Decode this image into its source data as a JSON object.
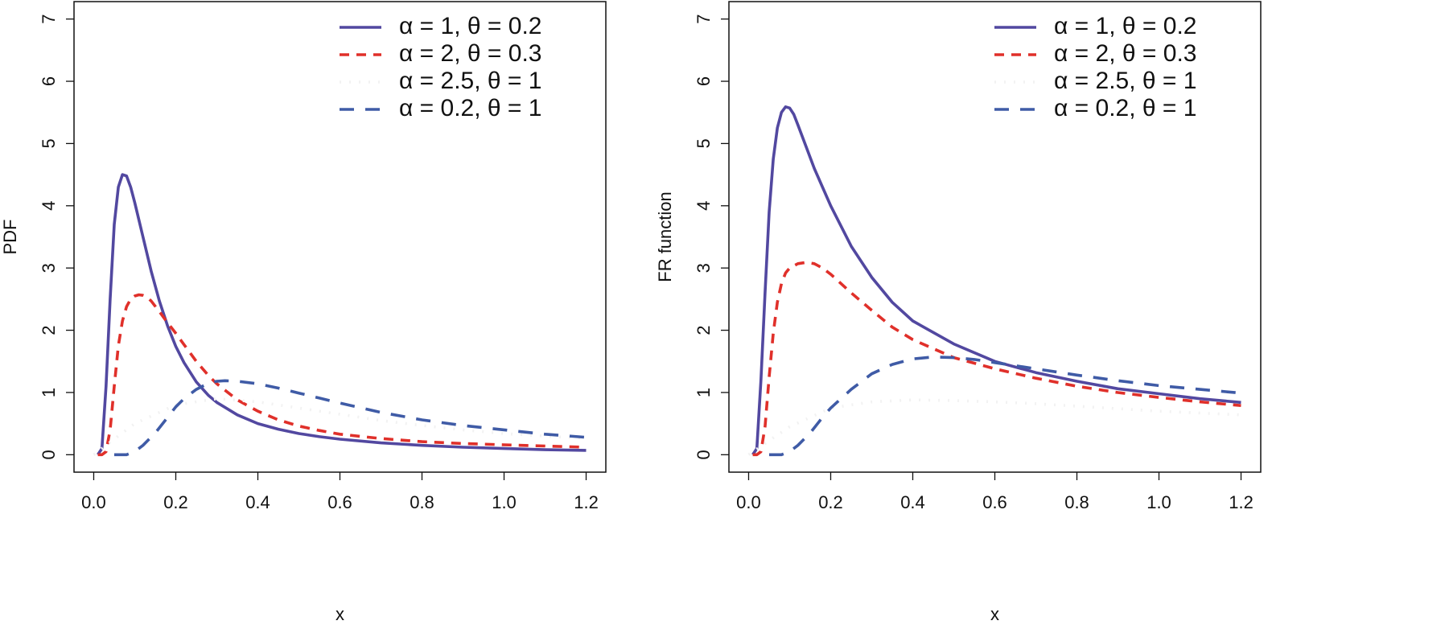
{
  "chart_data": [
    {
      "type": "line",
      "title": "",
      "xlabel": "x",
      "ylabel": "PDF",
      "xlim": [
        0.0,
        1.2
      ],
      "ylim": [
        0,
        7
      ],
      "xticks": [
        0.0,
        0.2,
        0.4,
        0.6,
        0.8,
        1.0,
        1.2
      ],
      "xtick_labels": [
        "0.0",
        "0.2",
        "0.4",
        "0.6",
        "0.8",
        "1.0",
        "1.2"
      ],
      "yticks": [
        0,
        1,
        2,
        3,
        4,
        5,
        6,
        7
      ],
      "ytick_labels": [
        "0",
        "1",
        "2",
        "3",
        "4",
        "5",
        "6",
        "7"
      ],
      "legend_position": "top-right",
      "grid": false,
      "series": [
        {
          "name": "α = 1, θ = 0.2",
          "color": "#5248A0",
          "style": "solid",
          "x": [
            0.01,
            0.02,
            0.03,
            0.04,
            0.05,
            0.06,
            0.07,
            0.08,
            0.09,
            0.1,
            0.12,
            0.14,
            0.16,
            0.18,
            0.2,
            0.22,
            0.25,
            0.28,
            0.3,
            0.35,
            0.4,
            0.45,
            0.5,
            0.55,
            0.6,
            0.7,
            0.8,
            0.9,
            1.0,
            1.1,
            1.2
          ],
          "values": [
            0.0,
            0.1,
            1.1,
            2.5,
            3.7,
            4.3,
            4.5,
            4.48,
            4.3,
            4.05,
            3.5,
            2.95,
            2.47,
            2.07,
            1.74,
            1.48,
            1.17,
            0.95,
            0.84,
            0.64,
            0.5,
            0.41,
            0.34,
            0.29,
            0.25,
            0.19,
            0.15,
            0.12,
            0.1,
            0.08,
            0.07
          ]
        },
        {
          "name": "α = 2, θ = 0.3",
          "color": "#E0302A",
          "style": "dashed",
          "x": [
            0.01,
            0.02,
            0.03,
            0.04,
            0.05,
            0.06,
            0.07,
            0.08,
            0.09,
            0.1,
            0.11,
            0.12,
            0.13,
            0.14,
            0.16,
            0.18,
            0.2,
            0.22,
            0.25,
            0.28,
            0.3,
            0.35,
            0.4,
            0.45,
            0.5,
            0.55,
            0.6,
            0.7,
            0.8,
            0.9,
            1.0,
            1.1,
            1.2
          ],
          "values": [
            0.0,
            0.0,
            0.05,
            0.4,
            1.1,
            1.75,
            2.15,
            2.38,
            2.5,
            2.55,
            2.57,
            2.56,
            2.53,
            2.47,
            2.3,
            2.12,
            1.95,
            1.77,
            1.5,
            1.27,
            1.14,
            0.88,
            0.7,
            0.56,
            0.46,
            0.39,
            0.33,
            0.26,
            0.21,
            0.18,
            0.16,
            0.14,
            0.12
          ]
        },
        {
          "name": "α = 2.5, θ = 1",
          "color": "#F2F2F2",
          "style": "dotted",
          "x": [
            0.0,
            0.1,
            0.2,
            0.3,
            0.4,
            0.5,
            0.6,
            0.7,
            0.8,
            0.9,
            1.0,
            1.1,
            1.2
          ],
          "values": [
            0.0,
            0.5,
            0.8,
            0.9,
            0.85,
            0.75,
            0.65,
            0.55,
            0.47,
            0.4,
            0.34,
            0.3,
            0.26
          ]
        },
        {
          "name": "α = 0.2, θ = 1",
          "color": "#3F5BA6",
          "style": "longdash",
          "x": [
            0.05,
            0.08,
            0.1,
            0.12,
            0.15,
            0.18,
            0.2,
            0.22,
            0.25,
            0.28,
            0.3,
            0.32,
            0.35,
            0.4,
            0.45,
            0.5,
            0.55,
            0.6,
            0.7,
            0.8,
            0.9,
            1.0,
            1.1,
            1.2
          ],
          "values": [
            0.0,
            0.0,
            0.05,
            0.15,
            0.35,
            0.6,
            0.77,
            0.9,
            1.05,
            1.15,
            1.18,
            1.19,
            1.18,
            1.14,
            1.07,
            0.99,
            0.91,
            0.83,
            0.68,
            0.56,
            0.47,
            0.4,
            0.33,
            0.28
          ]
        }
      ]
    },
    {
      "type": "line",
      "title": "",
      "xlabel": "x",
      "ylabel": "FR function",
      "xlim": [
        0.0,
        1.2
      ],
      "ylim": [
        0,
        7
      ],
      "xticks": [
        0.0,
        0.2,
        0.4,
        0.6,
        0.8,
        1.0,
        1.2
      ],
      "xtick_labels": [
        "0.0",
        "0.2",
        "0.4",
        "0.6",
        "0.8",
        "1.0",
        "1.2"
      ],
      "yticks": [
        0,
        1,
        2,
        3,
        4,
        5,
        6,
        7
      ],
      "ytick_labels": [
        "0",
        "1",
        "2",
        "3",
        "4",
        "5",
        "6",
        "7"
      ],
      "legend_position": "top-right",
      "grid": false,
      "series": [
        {
          "name": "α = 1, θ = 0.2",
          "color": "#5248A0",
          "style": "solid",
          "x": [
            0.01,
            0.02,
            0.03,
            0.04,
            0.05,
            0.06,
            0.07,
            0.08,
            0.09,
            0.1,
            0.11,
            0.12,
            0.14,
            0.16,
            0.18,
            0.2,
            0.25,
            0.3,
            0.35,
            0.4,
            0.5,
            0.6,
            0.7,
            0.8,
            0.9,
            1.0,
            1.1,
            1.2
          ],
          "values": [
            0.0,
            0.1,
            1.2,
            2.6,
            3.9,
            4.75,
            5.25,
            5.5,
            5.59,
            5.57,
            5.47,
            5.3,
            4.95,
            4.6,
            4.3,
            4.0,
            3.35,
            2.85,
            2.45,
            2.15,
            1.78,
            1.5,
            1.32,
            1.18,
            1.06,
            0.98,
            0.9,
            0.84
          ]
        },
        {
          "name": "α = 2, θ = 0.3",
          "color": "#E0302A",
          "style": "dashed",
          "x": [
            0.01,
            0.02,
            0.03,
            0.04,
            0.05,
            0.06,
            0.07,
            0.08,
            0.09,
            0.1,
            0.12,
            0.14,
            0.16,
            0.18,
            0.2,
            0.25,
            0.3,
            0.35,
            0.4,
            0.5,
            0.6,
            0.7,
            0.8,
            0.9,
            1.0,
            1.1,
            1.2
          ],
          "values": [
            0.0,
            0.0,
            0.05,
            0.45,
            1.25,
            1.95,
            2.45,
            2.75,
            2.92,
            3.0,
            3.07,
            3.09,
            3.07,
            3.0,
            2.9,
            2.6,
            2.32,
            2.05,
            1.85,
            1.56,
            1.38,
            1.23,
            1.1,
            1.0,
            0.92,
            0.85,
            0.79
          ]
        },
        {
          "name": "α = 2.5, θ = 1",
          "color": "#F2F2F2",
          "style": "dotted",
          "x": [
            0.0,
            0.1,
            0.2,
            0.3,
            0.4,
            0.5,
            0.6,
            0.7,
            0.8,
            0.9,
            1.0,
            1.1,
            1.2
          ],
          "values": [
            0.0,
            0.45,
            0.75,
            0.85,
            0.88,
            0.87,
            0.85,
            0.82,
            0.78,
            0.74,
            0.7,
            0.67,
            0.64
          ]
        },
        {
          "name": "α = 0.2, θ = 1",
          "color": "#3F5BA6",
          "style": "longdash",
          "x": [
            0.05,
            0.08,
            0.1,
            0.12,
            0.15,
            0.18,
            0.2,
            0.25,
            0.3,
            0.35,
            0.4,
            0.45,
            0.5,
            0.55,
            0.6,
            0.7,
            0.8,
            0.9,
            1.0,
            1.1,
            1.2
          ],
          "values": [
            0.0,
            0.0,
            0.05,
            0.15,
            0.35,
            0.6,
            0.75,
            1.05,
            1.3,
            1.45,
            1.54,
            1.57,
            1.56,
            1.53,
            1.48,
            1.38,
            1.28,
            1.19,
            1.11,
            1.05,
            0.99
          ]
        }
      ]
    }
  ]
}
